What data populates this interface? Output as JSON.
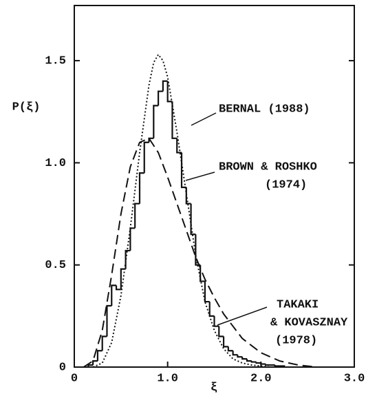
{
  "chart_data": {
    "type": "histogram",
    "x_label": "ξ",
    "y_label": "P(ξ)",
    "xlim": [
      0,
      3
    ],
    "ylim": [
      0,
      1.77
    ],
    "xticks": [
      0,
      {
        "value": 1,
        "label": "1.0"
      },
      {
        "value": 2,
        "label": "2.0"
      },
      {
        "value": 3,
        "label": "3.0"
      }
    ],
    "yticks": [
      0,
      0.5,
      {
        "value": 1,
        "label": "1.0"
      },
      1.5
    ],
    "bins": [
      0.15,
      0.2,
      0.25,
      0.3,
      0.35,
      0.4,
      0.45,
      0.5,
      0.55,
      0.6,
      0.65,
      0.7,
      0.75,
      0.8,
      0.85,
      0.9,
      0.95,
      1.0,
      1.05,
      1.1,
      1.15,
      1.2,
      1.25,
      1.3,
      1.35,
      1.4,
      1.45,
      1.5,
      1.55,
      1.6,
      1.65,
      1.7,
      1.75,
      1.8,
      1.85,
      1.9,
      1.95,
      2.0,
      2.05,
      2.1,
      2.15,
      2.2,
      2.25
    ],
    "counts": [
      0.01,
      0.03,
      0.08,
      0.15,
      0.3,
      0.4,
      0.38,
      0.48,
      0.57,
      0.68,
      0.8,
      0.95,
      1.1,
      1.12,
      1.28,
      1.35,
      1.4,
      1.3,
      1.12,
      1.05,
      0.88,
      0.8,
      0.65,
      0.5,
      0.42,
      0.32,
      0.25,
      0.2,
      0.15,
      0.1,
      0.08,
      0.06,
      0.05,
      0.04,
      0.03,
      0.025,
      0.02,
      0.015,
      0.01,
      0.01,
      0.005,
      0.005
    ],
    "color": "#111111",
    "series": [
      {
        "style": "dotted",
        "color": "#111111",
        "x": [
          0.2,
          0.3,
          0.4,
          0.5,
          0.6,
          0.7,
          0.8,
          0.85,
          0.9,
          0.95,
          1.0,
          1.1,
          1.2,
          1.3,
          1.4,
          1.5,
          1.6,
          1.7,
          1.8,
          1.9,
          2.0,
          2.1
        ],
        "values": [
          0,
          0.02,
          0.12,
          0.35,
          0.68,
          1.05,
          1.38,
          1.49,
          1.53,
          1.5,
          1.42,
          1.15,
          0.85,
          0.55,
          0.32,
          0.18,
          0.09,
          0.04,
          0.02,
          0.01,
          0.005,
          0
        ]
      },
      {
        "style": "dashed",
        "color": "#111111",
        "x": [
          0.1,
          0.2,
          0.3,
          0.4,
          0.5,
          0.6,
          0.7,
          0.8,
          0.9,
          1.0,
          1.1,
          1.2,
          1.3,
          1.4,
          1.5,
          1.6,
          1.8,
          2.0,
          2.2,
          2.4,
          2.6
        ],
        "values": [
          0,
          0.03,
          0.18,
          0.45,
          0.75,
          0.98,
          1.1,
          1.12,
          1.05,
          0.93,
          0.8,
          0.67,
          0.54,
          0.43,
          0.34,
          0.26,
          0.14,
          0.07,
          0.03,
          0.01,
          0
        ]
      }
    ],
    "annotations": [
      "BERNAL (1988)",
      "BROWN & ROSHKO",
      "(1974)",
      "TAKAKI",
      "& KOVASZNAY",
      "(1978)"
    ]
  }
}
